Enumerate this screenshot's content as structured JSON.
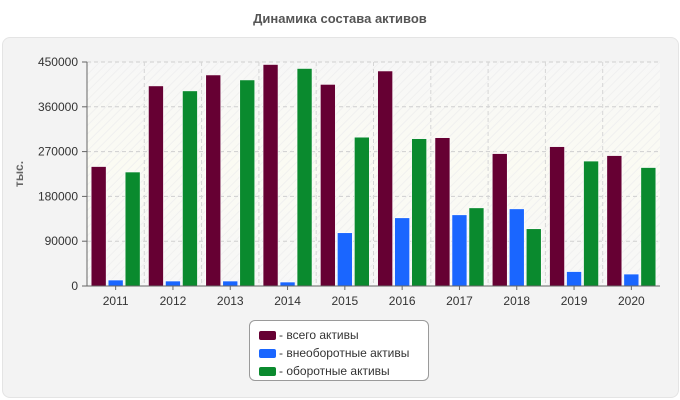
{
  "chart_data": {
    "type": "bar",
    "title": "Динамика состава активов",
    "ylabel": "тыс.",
    "xlabel": "",
    "categories": [
      "2011",
      "2012",
      "2013",
      "2014",
      "2015",
      "2016",
      "2017",
      "2018",
      "2019",
      "2020"
    ],
    "series": [
      {
        "name": "всего активы",
        "color": "#660033",
        "values": [
          240000,
          402000,
          424000,
          445000,
          405000,
          432000,
          298000,
          266000,
          280000,
          262000
        ]
      },
      {
        "name": "внеоборотные активы",
        "color": "#1a66ff",
        "values": [
          12000,
          10000,
          10000,
          8000,
          107000,
          137000,
          143000,
          155000,
          29000,
          24000
        ]
      },
      {
        "name": "оборотные активы",
        "color": "#0a8a2e",
        "values": [
          229000,
          392000,
          414000,
          437000,
          299000,
          296000,
          157000,
          115000,
          251000,
          238000
        ]
      }
    ],
    "ylim": [
      0,
      450000
    ],
    "yticks": [
      "0",
      "90000",
      "180000",
      "270000",
      "360000",
      "450000"
    ],
    "grid": true,
    "legend_position": "bottom"
  }
}
